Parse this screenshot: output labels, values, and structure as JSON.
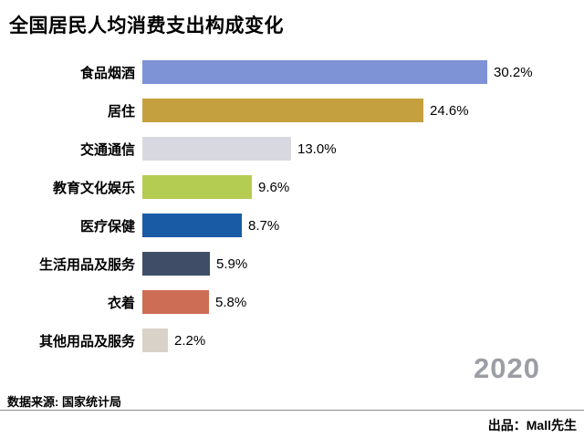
{
  "header": {
    "title": "全国居民人均消费支出构成变化"
  },
  "chart_data": {
    "type": "bar",
    "orientation": "horizontal",
    "title": "全国居民人均消费支出构成变化",
    "categories": [
      "食品烟酒",
      "居住",
      "交通通信",
      "教育文化娱乐",
      "医疗保健",
      "生活用品及服务",
      "衣着",
      "其他用品及服务"
    ],
    "values": [
      30.2,
      24.6,
      13.0,
      9.6,
      8.7,
      5.9,
      5.8,
      2.2
    ],
    "value_labels": [
      "30.2%",
      "24.6%",
      "13.0%",
      "9.6%",
      "8.7%",
      "5.9%",
      "5.8%",
      "2.2%"
    ],
    "colors": [
      "#7d93d6",
      "#c5a03e",
      "#d8d9e0",
      "#b5cc52",
      "#1a5ba6",
      "#3f4e66",
      "#cd6d55",
      "#d9d2c9"
    ],
    "xlim": [
      0,
      32
    ],
    "grid": false,
    "legend": false,
    "year_label": "2020"
  },
  "footer": {
    "source": "数据来源: 国家统计局",
    "credit": "出品：Mall先生"
  }
}
